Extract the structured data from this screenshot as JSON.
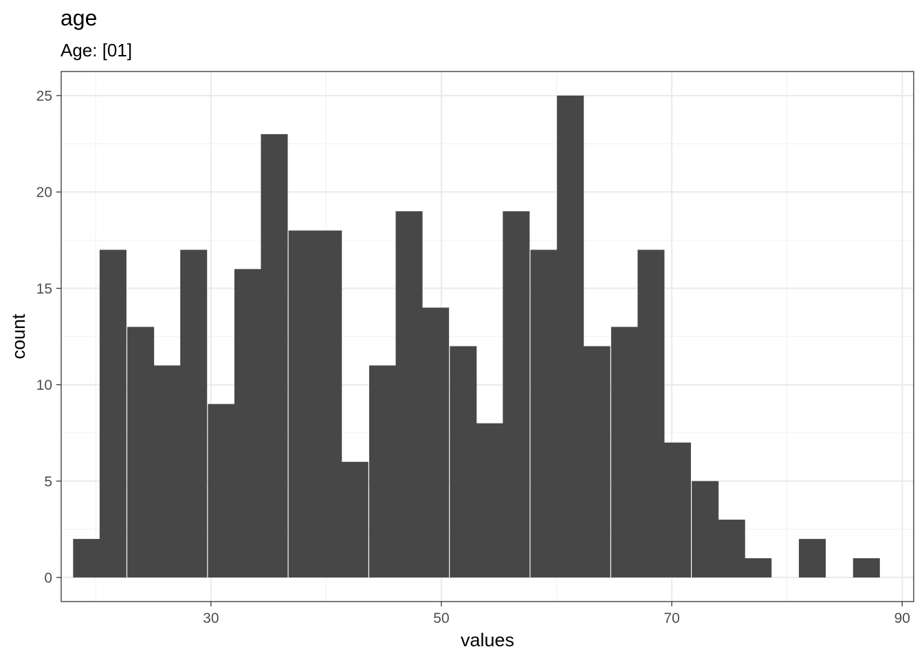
{
  "chart_data": {
    "type": "bar",
    "title": "age",
    "subtitle": "Age: [01]",
    "xlabel": "values",
    "ylabel": "count",
    "xlim": [
      17,
      91
    ],
    "ylim": [
      -1.25,
      26.25
    ],
    "x_ticks": [
      30,
      50,
      70,
      90
    ],
    "y_ticks": [
      0,
      5,
      10,
      15,
      20,
      25
    ],
    "x_minor_gridlines": [
      20,
      40,
      60,
      80
    ],
    "y_minor_gridlines": [
      2.5,
      7.5,
      12.5,
      17.5,
      22.5
    ],
    "grid": true,
    "bin_width": 2.33,
    "bins": [
      {
        "x": 19.2,
        "count": 2
      },
      {
        "x": 21.5,
        "count": 17
      },
      {
        "x": 23.9,
        "count": 13
      },
      {
        "x": 26.2,
        "count": 11
      },
      {
        "x": 28.5,
        "count": 17
      },
      {
        "x": 30.9,
        "count": 9
      },
      {
        "x": 33.2,
        "count": 16
      },
      {
        "x": 35.5,
        "count": 23
      },
      {
        "x": 37.9,
        "count": 18
      },
      {
        "x": 40.2,
        "count": 18
      },
      {
        "x": 42.5,
        "count": 6
      },
      {
        "x": 44.9,
        "count": 11
      },
      {
        "x": 47.2,
        "count": 19
      },
      {
        "x": 49.5,
        "count": 14
      },
      {
        "x": 51.9,
        "count": 12
      },
      {
        "x": 54.2,
        "count": 8
      },
      {
        "x": 56.5,
        "count": 19
      },
      {
        "x": 58.9,
        "count": 17
      },
      {
        "x": 61.2,
        "count": 25
      },
      {
        "x": 63.5,
        "count": 12
      },
      {
        "x": 65.9,
        "count": 13
      },
      {
        "x": 68.2,
        "count": 17
      },
      {
        "x": 70.5,
        "count": 7
      },
      {
        "x": 72.9,
        "count": 5
      },
      {
        "x": 75.2,
        "count": 3
      },
      {
        "x": 77.5,
        "count": 1
      },
      {
        "x": 79.9,
        "count": 0
      },
      {
        "x": 82.2,
        "count": 2
      },
      {
        "x": 84.5,
        "count": 0
      },
      {
        "x": 86.9,
        "count": 1
      }
    ],
    "colors": {
      "bar": "#474747",
      "panel_border": "#333333",
      "grid_major": "#ebebeb",
      "grid_minor": "#f2f2f2",
      "tick_label": "#4d4d4d"
    }
  }
}
